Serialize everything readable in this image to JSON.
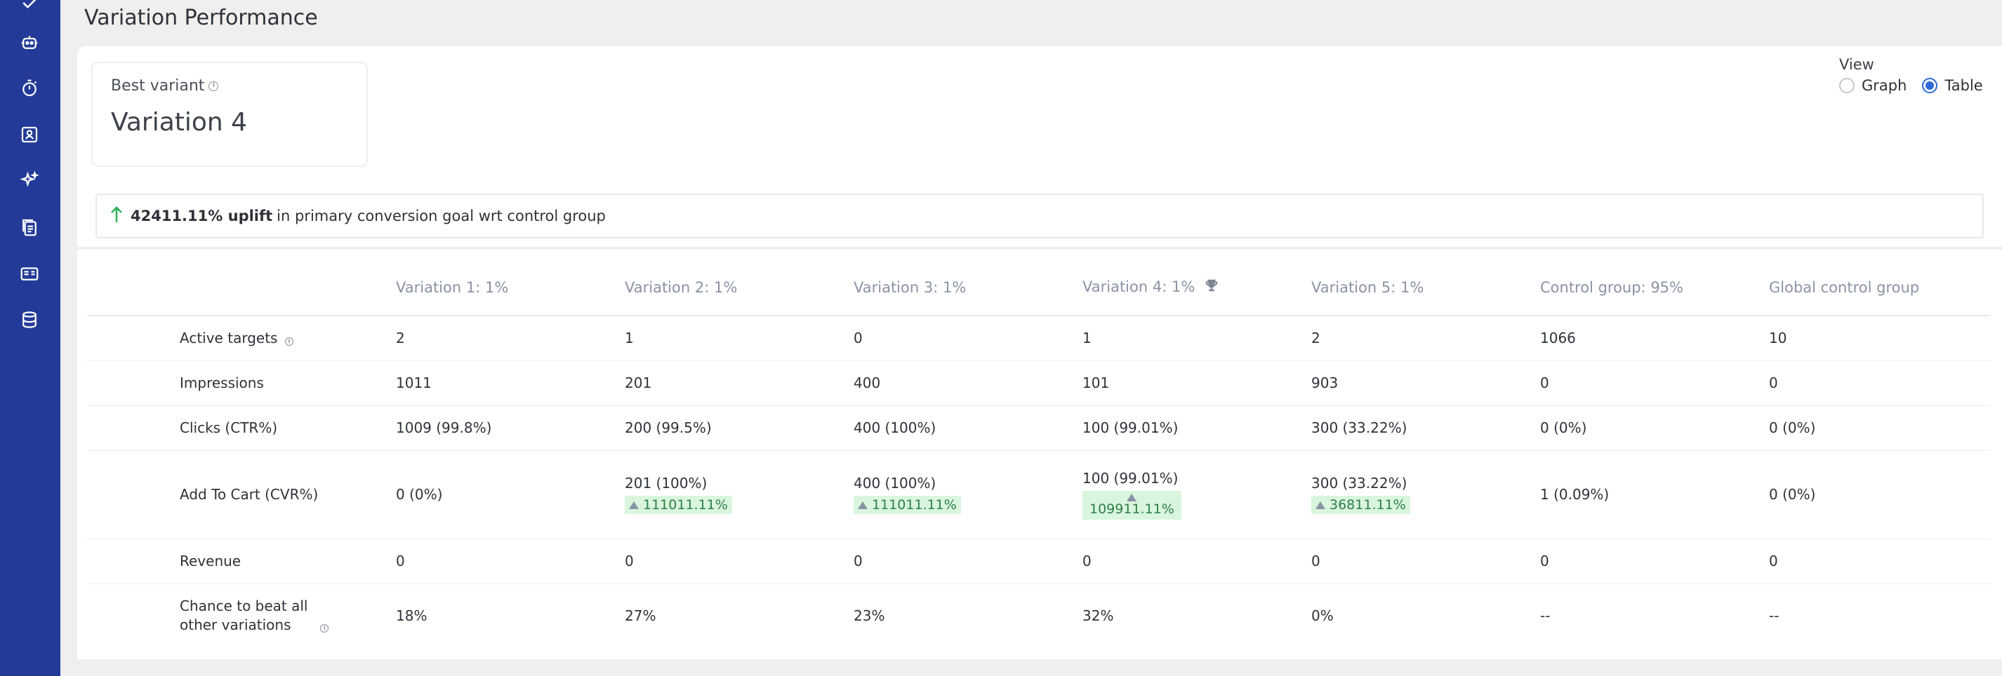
{
  "page": {
    "title": "Variation Performance"
  },
  "sidebar": {
    "icons": [
      "robot-icon",
      "timer-icon",
      "contact-card-icon",
      "sparkle-icon",
      "copy-documents-icon",
      "id-card-icon",
      "database-icon"
    ],
    "color": "#233a98"
  },
  "best_variant": {
    "label": "Best variant",
    "value": "Variation 4"
  },
  "view": {
    "label": "View",
    "options": [
      "Graph",
      "Table"
    ],
    "selected": "Table"
  },
  "uplift": {
    "value": "42411.11% uplift",
    "text": "in primary conversion goal wrt control group"
  },
  "table": {
    "columns": [
      "Variation 1: 1%",
      "Variation 2: 1%",
      "Variation 3: 1%",
      "Variation 4: 1%",
      "Variation 5: 1%",
      "Control group: 95%",
      "Global control group"
    ],
    "rows": [
      {
        "label": "Active targets",
        "cells": [
          "2",
          "1",
          "0",
          "1",
          "2",
          "1066",
          "10"
        ]
      },
      {
        "label": "Impressions",
        "cells": [
          "1011",
          "201",
          "400",
          "101",
          "903",
          "0",
          "0"
        ]
      },
      {
        "label": "Clicks (CTR%)",
        "cells": [
          "1009 (99.8%)",
          "200 (99.5%)",
          "400 (100%)",
          "100 (99.01%)",
          "300 (33.22%)",
          "0 (0%)",
          "0 (0%)"
        ]
      },
      {
        "label": "Add To Cart (CVR%)",
        "cells": [
          "0 (0%)",
          "201 (100%)",
          "400 (100%)",
          "100 (99.01%)",
          "300 (33.22%)",
          "1 (0.09%)",
          "0 (0%)"
        ],
        "uplifts": [
          "",
          "111011.11%",
          "111011.11%",
          "109911.11%",
          "36811.11%",
          "",
          ""
        ]
      },
      {
        "label": "Revenue",
        "cells": [
          "0",
          "0",
          "0",
          "0",
          "0",
          "0",
          "0"
        ]
      },
      {
        "label": "Chance to beat all other variations",
        "cells": [
          "18%",
          "27%",
          "23%",
          "32%",
          "0%",
          "--",
          "--"
        ]
      }
    ]
  },
  "colors": {
    "accent": "#2f6bd8",
    "uplift_green": "#2c7f45",
    "badge_bg": "#d9f5de"
  }
}
